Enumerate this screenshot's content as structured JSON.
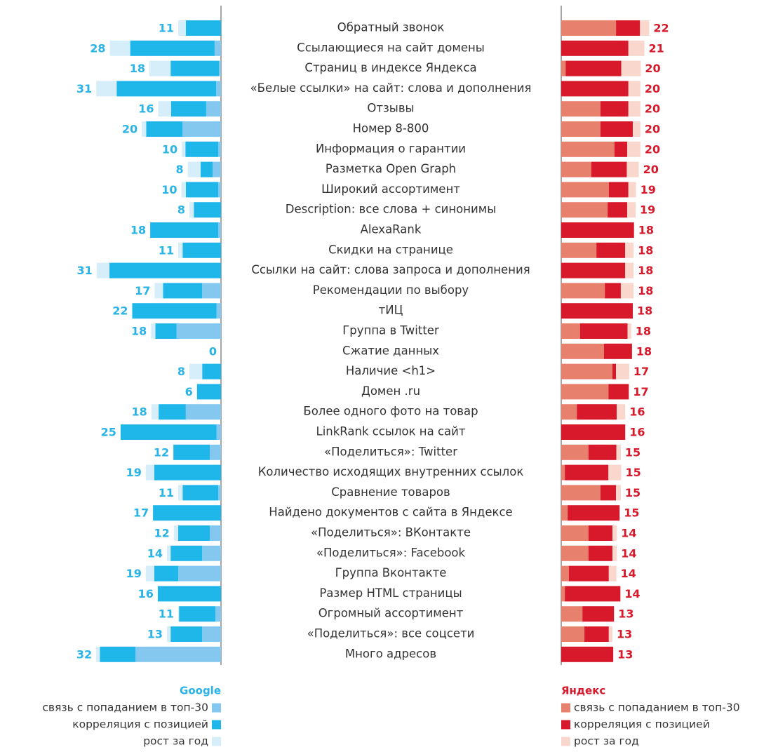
{
  "chart_data": {
    "type": "butterfly_stacked_bar",
    "categories": [
      "Обратный звонок",
      "Ссылающиеся на сайт домены",
      "Страниц в индексе Яндекса",
      "«Белые ссылки» на сайт: слова и дополнения",
      "Отзывы",
      "Номер 8-800",
      "Информация о гарантии",
      "Разметка Open Graph",
      "Широкий ассортимент",
      "Description: все слова + синонимы",
      "AlexaRank",
      "Скидки на странице",
      "Ссылки на сайт: слова запроса и дополнения",
      "Рекомендации по выбору",
      "тИЦ",
      "Группа в Twitter",
      "Сжатие данных",
      "Наличие <h1>",
      "Домен .ru",
      "Более одного фото на товар",
      "LinkRank ссылок на сайт",
      "«Поделиться»: Twitter",
      "Количество исходящих внутренних ссылок",
      "Сравнение товаров",
      "Найдено документов с сайта в Яндексе",
      "«Поделиться»: ВКонтакте",
      "«Поделиться»:  Facebook",
      "Группа Вконтакте",
      "Размер HTML страницы",
      "Огромный ассортимент",
      "«Поделиться»: все соцсети",
      "Много адресов"
    ],
    "google": {
      "name": "Google",
      "label_color": "#2ab3e6",
      "totals": [
        11,
        28,
        18,
        31,
        16,
        20,
        10,
        8,
        10,
        8,
        18,
        11,
        31,
        17,
        22,
        18,
        0,
        8,
        6,
        18,
        25,
        12,
        19,
        11,
        17,
        12,
        14,
        19,
        16,
        11,
        13,
        32
      ],
      "series": [
        {
          "name": "связь с попаданием в топ-30",
          "color": "#84c8ef",
          "values": [
            0,
            1.6,
            0.5,
            1.2,
            3.7,
            9.6,
            0.7,
            2.1,
            0.7,
            0,
            0.7,
            0,
            0,
            4.7,
            1.1,
            11.1,
            0,
            0,
            0,
            8.8,
            1.1,
            2.8,
            0,
            0.7,
            0,
            2.8,
            4.7,
            10.7,
            0,
            1.4,
            4.7,
            21.4
          ]
        },
        {
          "name": "корреляция с позицией",
          "color": "#1fb6ea",
          "values": [
            8.8,
            21.1,
            12.1,
            24.9,
            8.8,
            9.1,
            8.2,
            3.0,
            8.1,
            6.8,
            17.0,
            9.6,
            27.9,
            9.8,
            21.1,
            5.3,
            0,
            4.7,
            6.0,
            6.8,
            24.0,
            9.1,
            16.7,
            8.9,
            17.0,
            7.9,
            7.9,
            6.0,
            15.8,
            9.1,
            7.9,
            8.9
          ]
        },
        {
          "name": "рост за год",
          "color": "#d6eefa",
          "values": [
            1.9,
            5.1,
            5.3,
            5.1,
            3.2,
            1.1,
            0.9,
            3.2,
            1.1,
            1.1,
            0,
            1.1,
            3.2,
            2.1,
            0,
            1.1,
            0,
            3.2,
            0,
            1.8,
            0,
            0,
            2.1,
            1.1,
            0,
            1.1,
            0.9,
            2.1,
            0,
            0.2,
            0.9,
            0.9
          ]
        }
      ]
    },
    "yandex": {
      "name": "Яндекс",
      "label_color": "#d7192b",
      "totals": [
        22,
        21,
        20,
        20,
        20,
        20,
        20,
        20,
        19,
        19,
        18,
        18,
        18,
        18,
        18,
        18,
        18,
        17,
        17,
        16,
        16,
        15,
        15,
        15,
        15,
        14,
        14,
        14,
        14,
        13,
        13,
        13
      ],
      "series": [
        {
          "name": "связь с попаданием в топ-30",
          "color": "#e8806e",
          "values": [
            13.7,
            0,
            1.1,
            0,
            9.8,
            9.8,
            13.3,
            7.5,
            11.9,
            11.6,
            0,
            8.8,
            0,
            10.9,
            0,
            4.7,
            10.7,
            12.8,
            11.8,
            3.9,
            0,
            6.8,
            0.9,
            9.8,
            1.6,
            6.8,
            6.8,
            1.9,
            0.9,
            5.3,
            5.8,
            0
          ]
        },
        {
          "name": "корреляция с позицией",
          "color": "#d7192b",
          "values": [
            6.0,
            16.8,
            13.9,
            16.8,
            7.0,
            8.1,
            3.2,
            8.9,
            4.9,
            4.9,
            18.2,
            7.2,
            16.0,
            4.0,
            17.9,
            11.9,
            7.0,
            0.9,
            5.1,
            10.0,
            16.0,
            7.0,
            10.9,
            3.9,
            13.0,
            6.0,
            6.0,
            10.0,
            13.9,
            7.9,
            6.1,
            13.0
          ]
        },
        {
          "name": "рост за год",
          "color": "#f9d7cc",
          "values": [
            2.3,
            4.0,
            4.9,
            3.0,
            3.0,
            1.9,
            3.3,
            3.0,
            1.9,
            2.1,
            0,
            2.1,
            2.1,
            3.2,
            0,
            0.9,
            0,
            3.3,
            0,
            2.1,
            0,
            1.1,
            3.2,
            1.2,
            0,
            1.1,
            1.1,
            1.9,
            0,
            0,
            0.9,
            0
          ]
        }
      ]
    }
  }
}
